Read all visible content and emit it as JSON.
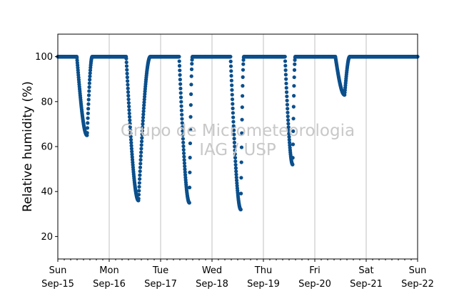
{
  "chart_data": {
    "type": "scatter",
    "ylabel": "Relative humidity (%)",
    "ylim": [
      10,
      110
    ],
    "yticks": [
      20,
      40,
      60,
      80,
      100
    ],
    "xlim_days": [
      0,
      7
    ],
    "xticks": [
      {
        "day": "Sun",
        "date": "Sep-15"
      },
      {
        "day": "Mon",
        "date": "Sep-16"
      },
      {
        "day": "Tue",
        "date": "Sep-17"
      },
      {
        "day": "Wed",
        "date": "Sep-18"
      },
      {
        "day": "Thu",
        "date": "Sep-19"
      },
      {
        "day": "Fri",
        "date": "Sep-20"
      },
      {
        "day": "Sat",
        "date": "Sep-21"
      },
      {
        "day": "Sun",
        "date": "Sep-22"
      }
    ],
    "grid": "vertical",
    "watermark": [
      "Grupo de Micrometeorologia",
      "IAG / USP"
    ],
    "color": "#0b4f8c",
    "baseline": 100,
    "dips": [
      {
        "start": 0.37,
        "min_at": 0.57,
        "end": 0.67,
        "min": 65
      },
      {
        "start": 1.33,
        "min_at": 1.57,
        "end": 1.8,
        "min": 36
      },
      {
        "start": 2.36,
        "min_at": 2.56,
        "end": 2.62,
        "min": 35
      },
      {
        "start": 3.36,
        "min_at": 3.56,
        "end": 3.62,
        "min": 32
      },
      {
        "start": 4.42,
        "min_at": 4.57,
        "end": 4.62,
        "min": 52
      },
      {
        "start": 5.4,
        "min_at": 5.58,
        "end": 5.68,
        "min": 83
      }
    ]
  }
}
